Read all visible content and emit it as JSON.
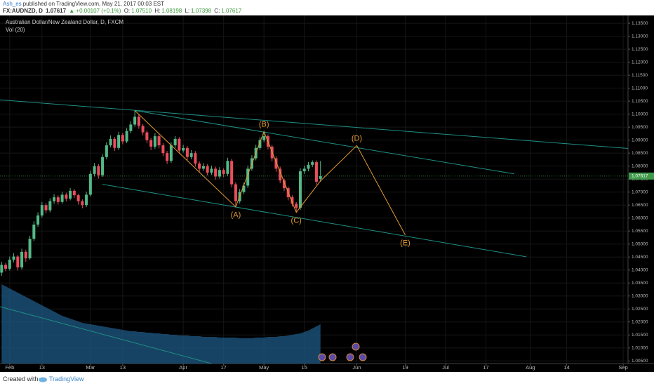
{
  "header": {
    "author": "Ash_es",
    "published": "published on TradingView.com, May 21, 2017 00:03 EST",
    "symbol": "FX:AUDNZD, D",
    "last": "1.07617",
    "change": "▲ +0.00107 (+0.1%)",
    "o_label": "O:",
    "o": "1.07510",
    "h_label": "H:",
    "h": "1.08198",
    "l_label": "L:",
    "l": "1.07398",
    "c_label": "C:",
    "c": "1.07617"
  },
  "chart_data": {
    "type": "candlestick",
    "title": "Australian Dollar/New Zealand Dollar, D, FXCM",
    "indicator": "Vol (20)",
    "ohlc": [
      [
        1.039,
        1.0432,
        1.0378,
        1.042
      ],
      [
        1.042,
        1.0428,
        1.0395,
        1.0405
      ],
      [
        1.0405,
        1.0452,
        1.0398,
        1.044
      ],
      [
        1.044,
        1.0465,
        1.043,
        1.0452
      ],
      [
        1.0452,
        1.0458,
        1.0398,
        1.041
      ],
      [
        1.041,
        1.0482,
        1.0402,
        1.047
      ],
      [
        1.047,
        1.0478,
        1.0432,
        1.0445
      ],
      [
        1.0445,
        1.0532,
        1.044,
        1.052
      ],
      [
        1.052,
        1.0588,
        1.0512,
        1.0575
      ],
      [
        1.0575,
        1.0622,
        1.0566,
        1.061
      ],
      [
        1.061,
        1.0662,
        1.0602,
        1.065
      ],
      [
        1.065,
        1.0658,
        1.0618,
        1.063
      ],
      [
        1.063,
        1.0676,
        1.0622,
        1.0665
      ],
      [
        1.0665,
        1.0692,
        1.0655,
        1.068
      ],
      [
        1.068,
        1.0688,
        1.0652,
        1.0662
      ],
      [
        1.0662,
        1.0702,
        1.0655,
        1.069
      ],
      [
        1.069,
        1.0698,
        1.0664,
        1.0675
      ],
      [
        1.0675,
        1.0716,
        1.0668,
        1.0705
      ],
      [
        1.0705,
        1.0712,
        1.0678,
        1.0688
      ],
      [
        1.0688,
        1.0694,
        1.0652,
        1.0665
      ],
      [
        1.0665,
        1.0672,
        1.0638,
        1.065
      ],
      [
        1.065,
        1.0702,
        1.0642,
        1.069
      ],
      [
        1.069,
        1.0782,
        1.0684,
        1.077
      ],
      [
        1.077,
        1.0812,
        1.076,
        1.08
      ],
      [
        1.08,
        1.0808,
        1.0752,
        1.0765
      ],
      [
        1.0765,
        1.0846,
        1.0758,
        1.0835
      ],
      [
        1.0835,
        1.0892,
        1.0826,
        1.088
      ],
      [
        1.088,
        1.0918,
        1.0872,
        1.0905
      ],
      [
        1.0905,
        1.0912,
        1.0858,
        1.087
      ],
      [
        1.087,
        1.0932,
        1.0862,
        1.092
      ],
      [
        1.092,
        1.0928,
        1.0884,
        1.0895
      ],
      [
        1.0895,
        1.0946,
        1.0888,
        1.0935
      ],
      [
        1.0935,
        1.0972,
        1.0926,
        1.096
      ],
      [
        1.096,
        1.1014,
        1.0952,
        1.099
      ],
      [
        1.099,
        1.0998,
        1.0944,
        1.0955
      ],
      [
        1.0955,
        1.0962,
        1.0918,
        1.093
      ],
      [
        1.093,
        1.0938,
        1.0888,
        1.09
      ],
      [
        1.09,
        1.0908,
        1.0862,
        1.0875
      ],
      [
        1.0875,
        1.0926,
        1.0866,
        1.0915
      ],
      [
        1.0915,
        1.0922,
        1.0868,
        1.088
      ],
      [
        1.088,
        1.0888,
        1.0838,
        1.085
      ],
      [
        1.085,
        1.0858,
        1.0808,
        1.082
      ],
      [
        1.082,
        1.0892,
        1.0812,
        1.088
      ],
      [
        1.088,
        1.0916,
        1.087,
        1.0905
      ],
      [
        1.0905,
        1.0912,
        1.0848,
        1.086
      ],
      [
        1.086,
        1.0882,
        1.0852,
        1.087
      ],
      [
        1.087,
        1.0878,
        1.0822,
        1.0835
      ],
      [
        1.0835,
        1.0862,
        1.0826,
        1.085
      ],
      [
        1.085,
        1.0858,
        1.0798,
        1.081
      ],
      [
        1.081,
        1.0818,
        1.0778,
        1.079
      ],
      [
        1.079,
        1.0812,
        1.0782,
        1.08
      ],
      [
        1.08,
        1.0808,
        1.0764,
        1.0775
      ],
      [
        1.0775,
        1.0802,
        1.0766,
        1.079
      ],
      [
        1.079,
        1.0798,
        1.0748,
        1.076
      ],
      [
        1.076,
        1.0796,
        1.0752,
        1.0785
      ],
      [
        1.0785,
        1.0792,
        1.0758,
        1.077
      ],
      [
        1.077,
        1.0832,
        1.0762,
        1.082
      ],
      [
        1.082,
        1.0828,
        1.0718,
        1.073
      ],
      [
        1.073,
        1.0738,
        1.0643,
        1.0665
      ],
      [
        1.0665,
        1.0712,
        1.0656,
        1.07
      ],
      [
        1.07,
        1.0736,
        1.0692,
        1.0725
      ],
      [
        1.0725,
        1.0802,
        1.0716,
        1.079
      ],
      [
        1.079,
        1.0842,
        1.0782,
        1.083
      ],
      [
        1.083,
        1.0882,
        1.0822,
        1.087
      ],
      [
        1.087,
        1.0912,
        1.0862,
        1.09
      ],
      [
        1.09,
        1.0933,
        1.0892,
        1.0915
      ],
      [
        1.0915,
        1.0922,
        1.0864,
        1.0875
      ],
      [
        1.0875,
        1.0882,
        1.0818,
        1.083
      ],
      [
        1.083,
        1.0838,
        1.0778,
        1.079
      ],
      [
        1.079,
        1.0798,
        1.0734,
        1.0745
      ],
      [
        1.0745,
        1.0752,
        1.0704,
        1.0715
      ],
      [
        1.0715,
        1.0722,
        1.0668,
        1.068
      ],
      [
        1.068,
        1.0688,
        1.0644,
        1.0655
      ],
      [
        1.0655,
        1.0662,
        1.0622,
        1.064
      ],
      [
        1.064,
        1.0792,
        1.0632,
        1.078
      ],
      [
        1.078,
        1.0802,
        1.077,
        1.079
      ],
      [
        1.079,
        1.0816,
        1.078,
        1.0805
      ],
      [
        1.0805,
        1.0822,
        1.0796,
        1.0815
      ],
      [
        1.0815,
        1.0822,
        1.0728,
        1.074
      ],
      [
        1.0751,
        1.08198,
        1.07398,
        1.07617
      ]
    ],
    "up_color": "#53b987",
    "down_color": "#eb4d5c",
    "volume_ma": [
      113,
      110,
      107,
      104,
      101,
      98,
      95,
      92,
      89,
      86,
      83,
      80,
      77,
      74,
      71,
      68,
      66,
      64,
      62,
      60,
      58,
      57,
      56,
      55,
      54,
      53,
      52,
      51,
      50,
      49,
      48,
      47,
      46,
      46,
      45,
      45,
      44,
      44,
      43,
      43,
      42,
      42,
      41,
      41,
      40,
      40,
      40,
      39,
      39,
      39,
      38,
      38,
      38,
      38,
      37,
      37,
      37,
      37,
      37,
      36,
      36,
      36,
      36,
      37,
      37,
      37,
      38,
      38,
      38,
      39,
      39,
      40,
      41,
      42,
      43,
      45,
      47,
      50,
      53,
      56
    ],
    "volume_lim": [
      0,
      200
    ],
    "volume_color": "#1d5a85",
    "xlim": [
      -0.4,
      155.2
    ],
    "xticks": [
      {
        "value": 2,
        "label": "Feb"
      },
      {
        "value": 10,
        "label": "13"
      },
      {
        "value": 22,
        "label": "Mar"
      },
      {
        "value": 30,
        "label": "13"
      },
      {
        "value": 45,
        "label": "Apr"
      },
      {
        "value": 55,
        "label": "17"
      },
      {
        "value": 65,
        "label": "May"
      },
      {
        "value": 75,
        "label": "15"
      },
      {
        "value": 88,
        "label": "Jun"
      },
      {
        "value": 100,
        "label": "19"
      },
      {
        "value": 110,
        "label": "Jul"
      },
      {
        "value": 120,
        "label": "17"
      },
      {
        "value": 131,
        "label": "Aug"
      },
      {
        "value": 140,
        "label": "14"
      },
      {
        "value": 154,
        "label": "Sep"
      }
    ],
    "ylim": [
      1.004,
      1.138
    ],
    "yticks": [
      {
        "value": 1.005,
        "label": "1.00500"
      },
      {
        "value": 1.01,
        "label": "1.01000"
      },
      {
        "value": 1.015,
        "label": "1.01500"
      },
      {
        "value": 1.02,
        "label": "1.02000"
      },
      {
        "value": 1.025,
        "label": "1.02500"
      },
      {
        "value": 1.03,
        "label": "1.03000"
      },
      {
        "value": 1.035,
        "label": "1.03500"
      },
      {
        "value": 1.04,
        "label": "1.04000"
      },
      {
        "value": 1.045,
        "label": "1.04500"
      },
      {
        "value": 1.05,
        "label": "1.05000"
      },
      {
        "value": 1.055,
        "label": "1.05500"
      },
      {
        "value": 1.06,
        "label": "1.06000"
      },
      {
        "value": 1.065,
        "label": "1.06500"
      },
      {
        "value": 1.07,
        "label": "1.07000"
      },
      {
        "value": 1.075,
        "label": "1.07500"
      },
      {
        "value": 1.08,
        "label": "1.08000"
      },
      {
        "value": 1.085,
        "label": "1.08500"
      },
      {
        "value": 1.09,
        "label": "1.09000"
      },
      {
        "value": 1.095,
        "label": "1.09500"
      },
      {
        "value": 1.1,
        "label": "1.10000"
      },
      {
        "value": 1.105,
        "label": "1.10500"
      },
      {
        "value": 1.11,
        "label": "1.11000"
      },
      {
        "value": 1.115,
        "label": "1.11500"
      },
      {
        "value": 1.12,
        "label": "1.12000"
      },
      {
        "value": 1.125,
        "label": "1.12500"
      },
      {
        "value": 1.13,
        "label": "1.13000"
      },
      {
        "value": 1.135,
        "label": "1.13500"
      }
    ],
    "grid": true,
    "last_price": {
      "value": 1.07617,
      "label": "1.07617"
    },
    "last_color": "#3f9b4a",
    "trend_color": "#1f8f84",
    "trend_lines": [
      {
        "points": [
          [
            -0.4,
            1.1055
          ],
          [
            155.2,
            1.0868
          ]
        ]
      },
      {
        "points": [
          [
            33,
            1.1014
          ],
          [
            127,
            1.077
          ]
        ]
      },
      {
        "points": [
          [
            25,
            1.073
          ],
          [
            130,
            1.0451
          ]
        ]
      },
      {
        "points": [
          [
            -0.4,
            1.0259
          ],
          [
            52,
            1.004
          ]
        ]
      }
    ],
    "wave": {
      "color": "#e39b34",
      "points": [
        {
          "x": 33,
          "y": 1.1014
        },
        {
          "x": 58,
          "y": 1.0643,
          "label": "(A)"
        },
        {
          "x": 65,
          "y": 1.0933,
          "label": "(B)"
        },
        {
          "x": 73,
          "y": 1.0622,
          "label": "(C)"
        },
        {
          "x": 79,
          "y": 1.0743
        },
        {
          "x": 88,
          "y": 1.0879,
          "label": "(D)"
        },
        {
          "x": 100,
          "y": 1.0535,
          "label": "(E)"
        }
      ]
    }
  },
  "footer": {
    "created": "Created with",
    "brand": "TradingView"
  }
}
